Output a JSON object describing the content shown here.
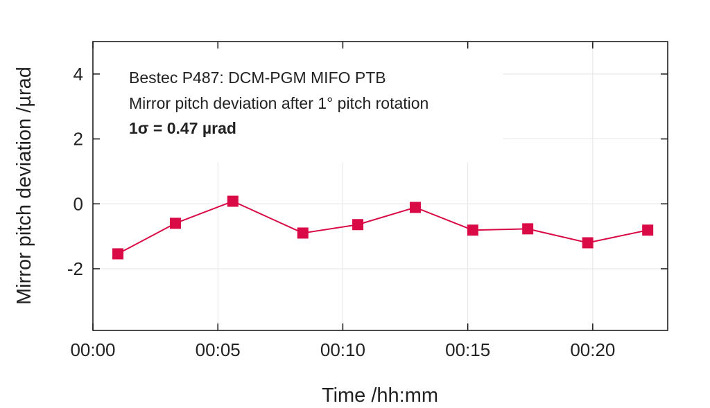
{
  "chart_data": {
    "type": "line",
    "title": "",
    "xlabel": "Time /hh:mm",
    "ylabel": "Mirror pitch deviation /µrad",
    "xlim": [
      0,
      23
    ],
    "ylim": [
      -3.9,
      5
    ],
    "x_ticks": [
      0,
      5,
      10,
      15,
      20
    ],
    "x_tick_labels": [
      "00:00",
      "00:05",
      "00:10",
      "00:15",
      "00:20"
    ],
    "y_ticks": [
      4,
      2,
      0,
      -2
    ],
    "y_tick_labels": [
      "4",
      "2",
      "0",
      "-2"
    ],
    "grid": true,
    "annotations": [
      "Bestec P487: DCM-PGM MIFO PTB",
      "Mirror pitch deviation after 1° pitch rotation",
      "1σ = 0.47 µrad"
    ],
    "series": [
      {
        "name": "Mirror pitch deviation",
        "color": "#d90a45",
        "marker": "square",
        "x": [
          1.0,
          3.3,
          5.6,
          8.4,
          10.6,
          12.9,
          15.2,
          17.4,
          19.8,
          22.2
        ],
        "y": [
          -1.54,
          -0.6,
          0.08,
          -0.9,
          -0.64,
          -0.11,
          -0.81,
          -0.77,
          -1.2,
          -0.81
        ]
      }
    ]
  }
}
